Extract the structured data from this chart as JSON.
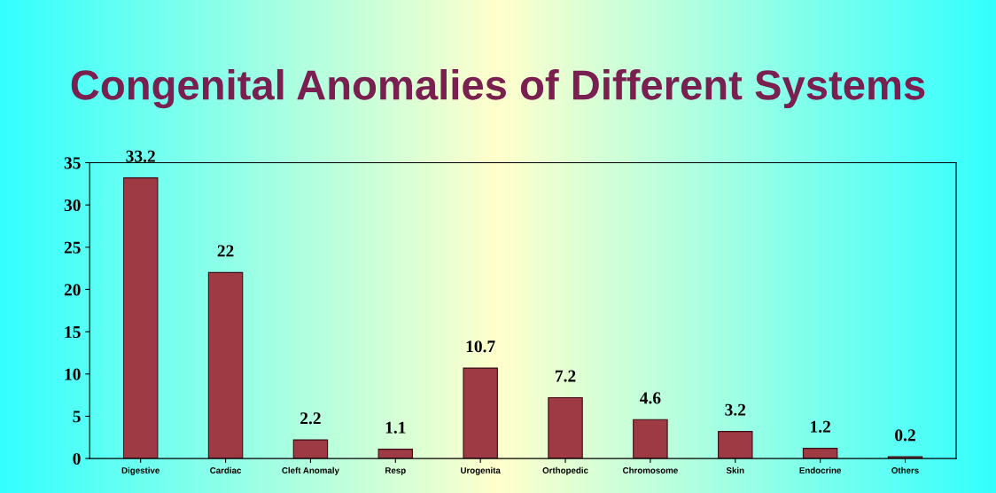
{
  "chart_data": {
    "type": "bar",
    "title": "Congenital Anomalies of Different Systems",
    "categories": [
      "Digestive",
      "Cardiac",
      "Cleft Anomaly",
      "Resp",
      "Urogenita",
      "Orthopedic",
      "Chromosome",
      "Skin",
      "Endocrine",
      "Others"
    ],
    "values": [
      33.2,
      22,
      2.2,
      1.1,
      10.7,
      7.2,
      4.6,
      3.2,
      1.2,
      0.2
    ],
    "color": "#9e3a44",
    "ylim": [
      0,
      35
    ],
    "yticks": [
      0,
      5,
      10,
      15,
      20,
      25,
      30,
      35
    ],
    "data_labels": true,
    "grid": false,
    "legend": false
  }
}
